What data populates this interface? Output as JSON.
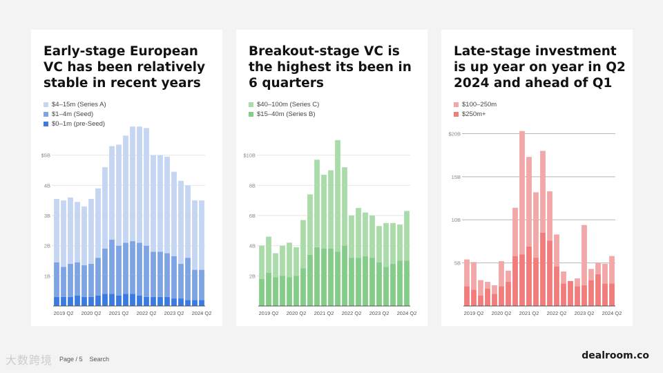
{
  "colors": {
    "blue_light": "#c5d6f2",
    "blue_mid": "#7fa4e2",
    "blue_dark": "#3b7be0",
    "green_light": "#aadcaa",
    "green_mid": "#84cd88",
    "red_light": "#f0a8a8",
    "red_mid": "#f07c7c",
    "axis": "#555555",
    "grid": "#e6e6e6",
    "grid_dark": "#b5b5b5"
  },
  "footer": {
    "page_label": "Page / 5",
    "search_label": "Search",
    "watermark": "大数跨境",
    "logo": "dealroom.co"
  },
  "chart_data": [
    {
      "type": "bar",
      "stacked": true,
      "title": "Early-stage European VC has been relatively stable in recent years",
      "x_tick_labels": [
        "2019 Q2",
        "2020 Q2",
        "2021 Q2",
        "2022 Q2",
        "2023 Q2",
        "2024 Q2"
      ],
      "y_tick_labels": [
        "1B",
        "2B",
        "3B",
        "4B",
        "$5B"
      ],
      "y_ticks": [
        1,
        2,
        3,
        4,
        5
      ],
      "ylim": [
        0,
        6
      ],
      "gridlines": true,
      "legend": [
        "$4–15m (Series A)",
        "$1–4m (Seed)",
        "$0–1m (pre-Seed)"
      ],
      "categories": [
        "2019 Q1",
        "2019 Q2",
        "2019 Q3",
        "2019 Q4",
        "2020 Q1",
        "2020 Q2",
        "2020 Q3",
        "2020 Q4",
        "2021 Q1",
        "2021 Q2",
        "2021 Q3",
        "2021 Q4",
        "2022 Q1",
        "2022 Q2",
        "2022 Q3",
        "2022 Q4",
        "2023 Q1",
        "2023 Q2",
        "2023 Q3",
        "2023 Q4",
        "2024 Q1",
        "2024 Q2"
      ],
      "series": [
        {
          "name": "$0–1m (pre-Seed)",
          "color": "#3b7be0",
          "values": [
            0.3,
            0.3,
            0.3,
            0.35,
            0.3,
            0.3,
            0.35,
            0.4,
            0.4,
            0.35,
            0.4,
            0.4,
            0.35,
            0.3,
            0.3,
            0.3,
            0.3,
            0.25,
            0.25,
            0.2,
            0.2,
            0.2
          ]
        },
        {
          "name": "$1–4m (Seed)",
          "color": "#7fa4e2",
          "values": [
            1.15,
            1.0,
            1.1,
            1.1,
            1.05,
            1.1,
            1.25,
            1.5,
            1.8,
            1.65,
            1.7,
            1.75,
            1.75,
            1.7,
            1.5,
            1.5,
            1.45,
            1.4,
            1.15,
            1.4,
            1.0,
            1.0
          ]
        },
        {
          "name": "$4–15m (Series A)",
          "color": "#c5d6f2",
          "values": [
            2.1,
            2.2,
            2.2,
            2.0,
            1.95,
            2.15,
            2.3,
            2.7,
            3.1,
            3.35,
            3.55,
            3.8,
            3.85,
            3.9,
            3.2,
            3.2,
            3.2,
            2.8,
            2.75,
            2.4,
            2.3,
            2.3
          ]
        }
      ]
    },
    {
      "type": "bar",
      "stacked": true,
      "title": "Breakout-stage VC is the highest its been in 6 quarters",
      "x_tick_labels": [
        "2019 Q2",
        "2020 Q2",
        "2021 Q2",
        "2022 Q2",
        "2023 Q2",
        "2024 Q2"
      ],
      "y_tick_labels": [
        "2B",
        "4B",
        "6B",
        "8B",
        "$10B"
      ],
      "y_ticks": [
        2,
        4,
        6,
        8,
        10
      ],
      "ylim": [
        0,
        12
      ],
      "gridlines": true,
      "legend": [
        "$40–100m (Series C)",
        "$15–40m (Series B)"
      ],
      "categories": [
        "2019 Q1",
        "2019 Q2",
        "2019 Q3",
        "2019 Q4",
        "2020 Q1",
        "2020 Q2",
        "2020 Q3",
        "2020 Q4",
        "2021 Q1",
        "2021 Q2",
        "2021 Q3",
        "2021 Q4",
        "2022 Q1",
        "2022 Q2",
        "2022 Q3",
        "2022 Q4",
        "2023 Q1",
        "2023 Q2",
        "2023 Q3",
        "2023 Q4",
        "2024 Q1",
        "2024 Q2"
      ],
      "series": [
        {
          "name": "$15–40m (Series B)",
          "color": "#84cd88",
          "values": [
            1.8,
            2.2,
            1.9,
            2.0,
            1.9,
            2.0,
            2.5,
            3.4,
            3.9,
            3.8,
            3.8,
            3.6,
            4.0,
            3.2,
            3.2,
            3.3,
            3.2,
            2.9,
            2.6,
            2.8,
            3.0,
            3.0
          ]
        },
        {
          "name": "$40–100m (Series C)",
          "color": "#aadcaa",
          "values": [
            2.2,
            2.4,
            1.6,
            2.0,
            2.3,
            1.9,
            3.2,
            4.0,
            5.8,
            4.9,
            5.2,
            7.4,
            5.2,
            2.8,
            3.3,
            2.9,
            2.8,
            2.4,
            2.9,
            2.7,
            2.4,
            3.3
          ]
        }
      ]
    },
    {
      "type": "bar",
      "stacked": true,
      "title": "Late-stage investment is up year on year in Q2 2024 and ahead of Q1",
      "x_tick_labels": [
        "2019 Q2",
        "2020 Q2",
        "2021 Q2",
        "2022 Q2",
        "2023 Q2",
        "2024 Q2"
      ],
      "y_tick_labels": [
        "5B",
        "10B",
        "15B",
        "$20B"
      ],
      "y_ticks": [
        5,
        10,
        15,
        20
      ],
      "ylim": [
        0,
        21
      ],
      "gridlines": true,
      "legend": [
        "$100–250m",
        "$250m+"
      ],
      "categories": [
        "2019 Q1",
        "2019 Q2",
        "2019 Q3",
        "2019 Q4",
        "2020 Q1",
        "2020 Q2",
        "2020 Q3",
        "2020 Q4",
        "2021 Q1",
        "2021 Q2",
        "2021 Q3",
        "2021 Q4",
        "2022 Q1",
        "2022 Q2",
        "2022 Q3",
        "2022 Q4",
        "2023 Q1",
        "2023 Q2",
        "2023 Q3",
        "2023 Q4",
        "2024 Q1",
        "2024 Q2"
      ],
      "series": [
        {
          "name": "$250m+",
          "color": "#f07c7c",
          "values": [
            2.3,
            1.9,
            1.2,
            2.0,
            1.4,
            2.3,
            2.8,
            5.8,
            6.0,
            6.9,
            5.6,
            8.5,
            7.6,
            4.6,
            2.6,
            2.9,
            2.3,
            2.4,
            3.0,
            3.7,
            2.6,
            2.6
          ]
        },
        {
          "name": "$100–250m",
          "color": "#f0a8a8",
          "values": [
            3.1,
            3.2,
            1.8,
            0.8,
            1.0,
            2.9,
            1.3,
            5.6,
            14.3,
            10.4,
            7.6,
            9.5,
            5.7,
            3.7,
            1.4,
            0.0,
            0.9,
            7.0,
            1.3,
            1.3,
            2.3,
            3.2
          ]
        }
      ]
    }
  ]
}
